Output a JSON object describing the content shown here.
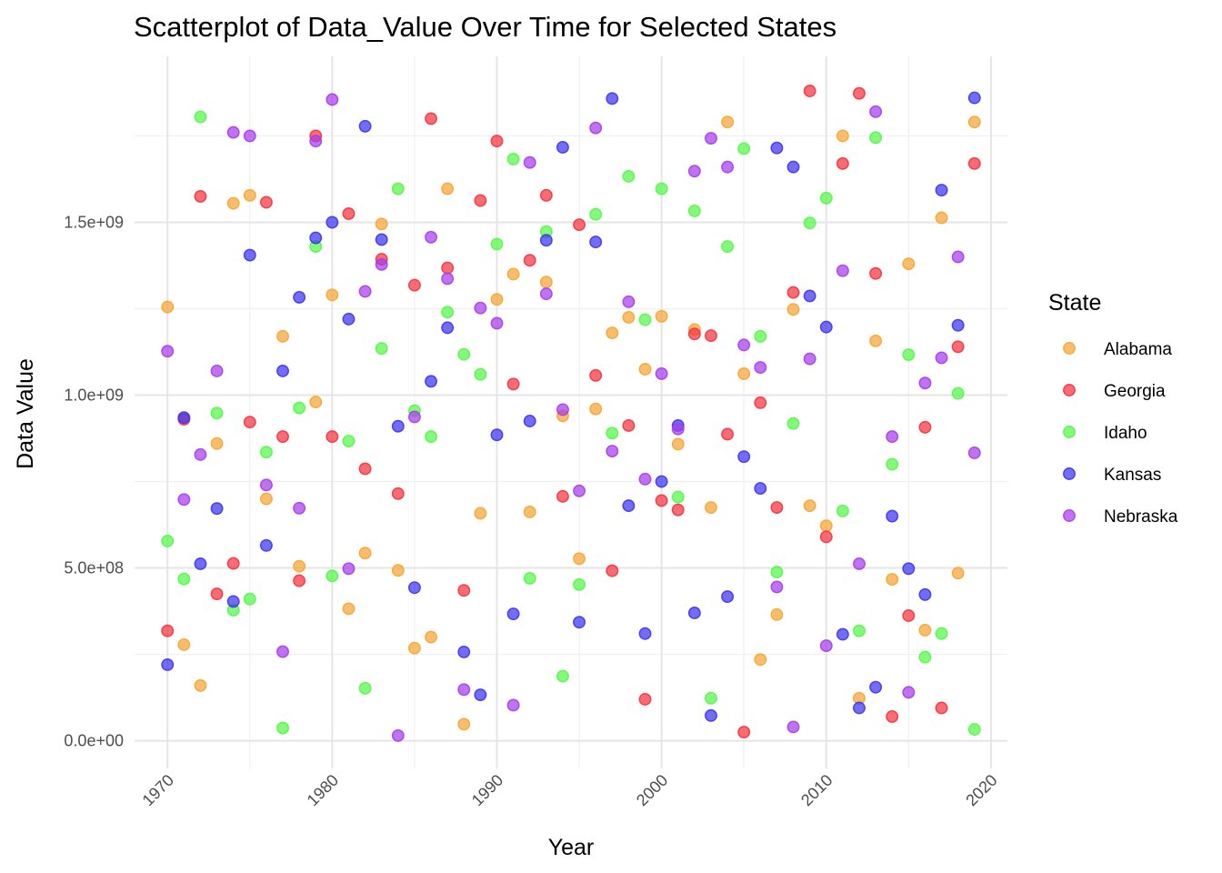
{
  "chart_data": {
    "type": "scatter",
    "title": "Scatterplot of Data_Value Over Time for Selected States",
    "xlabel": "Year",
    "ylabel": "Data Value",
    "xlim": [
      1968,
      2021
    ],
    "ylim": [
      -80000000,
      1980000000
    ],
    "x_ticks": [
      1970,
      1980,
      1990,
      2000,
      2010,
      2020
    ],
    "x_tick_labels": [
      "1970",
      "1980",
      "1990",
      "2000",
      "2010",
      "2020"
    ],
    "y_ticks": [
      0,
      500000000,
      1000000000,
      1500000000
    ],
    "y_tick_labels": [
      "0.0e+00",
      "5.0e+08",
      "1.0e+09",
      "1.5e+09"
    ],
    "grid": true,
    "legend": {
      "title": "State",
      "position": "right"
    },
    "series": [
      {
        "name": "Alabama",
        "color": "#F7A534",
        "points": [
          [
            1970,
            1255000000
          ],
          [
            1971,
            278000000
          ],
          [
            1972,
            160000000
          ],
          [
            1973,
            860000000
          ],
          [
            1974,
            1555000000
          ],
          [
            1975,
            1578000000
          ],
          [
            1976,
            700000000
          ],
          [
            1977,
            1170000000
          ],
          [
            1978,
            505000000
          ],
          [
            1979,
            980000000
          ],
          [
            1980,
            1290000000
          ],
          [
            1981,
            382000000
          ],
          [
            1982,
            543000000
          ],
          [
            1983,
            1495000000
          ],
          [
            1984,
            493000000
          ],
          [
            1985,
            268000000
          ],
          [
            1986,
            300000000
          ],
          [
            1987,
            1597000000
          ],
          [
            1988,
            48000000
          ],
          [
            1989,
            658000000
          ],
          [
            1990,
            1277000000
          ],
          [
            1991,
            1350000000
          ],
          [
            1992,
            662000000
          ],
          [
            1993,
            1327000000
          ],
          [
            1994,
            940000000
          ],
          [
            1995,
            527000000
          ],
          [
            1996,
            960000000
          ],
          [
            1997,
            1180000000
          ],
          [
            1998,
            1225000000
          ],
          [
            1999,
            1075000000
          ],
          [
            2000,
            1228000000
          ],
          [
            2001,
            858000000
          ],
          [
            2002,
            1190000000
          ],
          [
            2003,
            675000000
          ],
          [
            2004,
            1790000000
          ],
          [
            2005,
            1062000000
          ],
          [
            2006,
            235000000
          ],
          [
            2007,
            365000000
          ],
          [
            2008,
            1248000000
          ],
          [
            2009,
            680000000
          ],
          [
            2010,
            622000000
          ],
          [
            2011,
            1750000000
          ],
          [
            2012,
            123000000
          ],
          [
            2013,
            1157000000
          ],
          [
            2014,
            467000000
          ],
          [
            2015,
            1380000000
          ],
          [
            2016,
            320000000
          ],
          [
            2017,
            1513000000
          ],
          [
            2018,
            485000000
          ],
          [
            2019,
            1790000000
          ]
        ]
      },
      {
        "name": "Georgia",
        "color": "#F5333F",
        "points": [
          [
            1970,
            318000000
          ],
          [
            1971,
            930000000
          ],
          [
            1972,
            1575000000
          ],
          [
            1973,
            425000000
          ],
          [
            1974,
            513000000
          ],
          [
            1975,
            922000000
          ],
          [
            1976,
            1558000000
          ],
          [
            1977,
            880000000
          ],
          [
            1978,
            463000000
          ],
          [
            1979,
            1750000000
          ],
          [
            1980,
            880000000
          ],
          [
            1981,
            1525000000
          ],
          [
            1982,
            787000000
          ],
          [
            1983,
            1393000000
          ],
          [
            1984,
            715000000
          ],
          [
            1985,
            1318000000
          ],
          [
            1986,
            1800000000
          ],
          [
            1987,
            1368000000
          ],
          [
            1988,
            435000000
          ],
          [
            1989,
            1563000000
          ],
          [
            1990,
            1735000000
          ],
          [
            1991,
            1032000000
          ],
          [
            1992,
            1390000000
          ],
          [
            1993,
            1578000000
          ],
          [
            1994,
            707000000
          ],
          [
            1995,
            1493000000
          ],
          [
            1996,
            1057000000
          ],
          [
            1997,
            492000000
          ],
          [
            1998,
            912000000
          ],
          [
            1999,
            120000000
          ],
          [
            2000,
            695000000
          ],
          [
            2001,
            668000000
          ],
          [
            2002,
            1177000000
          ],
          [
            2003,
            1172000000
          ],
          [
            2004,
            887000000
          ],
          [
            2005,
            25000000
          ],
          [
            2006,
            978000000
          ],
          [
            2007,
            675000000
          ],
          [
            2008,
            1297000000
          ],
          [
            2009,
            1880000000
          ],
          [
            2010,
            590000000
          ],
          [
            2011,
            1670000000
          ],
          [
            2012,
            1873000000
          ],
          [
            2013,
            1352000000
          ],
          [
            2014,
            70000000
          ],
          [
            2015,
            362000000
          ],
          [
            2016,
            907000000
          ],
          [
            2017,
            95000000
          ],
          [
            2018,
            1140000000
          ],
          [
            2019,
            1670000000
          ]
        ]
      },
      {
        "name": "Idaho",
        "color": "#55F74A",
        "points": [
          [
            1970,
            578000000
          ],
          [
            1971,
            468000000
          ],
          [
            1972,
            1805000000
          ],
          [
            1973,
            948000000
          ],
          [
            1974,
            378000000
          ],
          [
            1975,
            410000000
          ],
          [
            1976,
            835000000
          ],
          [
            1977,
            37000000
          ],
          [
            1978,
            963000000
          ],
          [
            1979,
            1430000000
          ],
          [
            1980,
            477000000
          ],
          [
            1981,
            867000000
          ],
          [
            1982,
            152000000
          ],
          [
            1983,
            1135000000
          ],
          [
            1984,
            1597000000
          ],
          [
            1985,
            955000000
          ],
          [
            1986,
            880000000
          ],
          [
            1987,
            1240000000
          ],
          [
            1988,
            1118000000
          ],
          [
            1989,
            1060000000
          ],
          [
            1990,
            1437000000
          ],
          [
            1991,
            1683000000
          ],
          [
            1992,
            470000000
          ],
          [
            1993,
            1473000000
          ],
          [
            1994,
            187000000
          ],
          [
            1995,
            452000000
          ],
          [
            1996,
            1523000000
          ],
          [
            1997,
            890000000
          ],
          [
            1998,
            1633000000
          ],
          [
            1999,
            1218000000
          ],
          [
            2000,
            1597000000
          ],
          [
            2001,
            705000000
          ],
          [
            2002,
            1533000000
          ],
          [
            2003,
            123000000
          ],
          [
            2004,
            1430000000
          ],
          [
            2005,
            1713000000
          ],
          [
            2006,
            1170000000
          ],
          [
            2007,
            488000000
          ],
          [
            2008,
            918000000
          ],
          [
            2009,
            1498000000
          ],
          [
            2010,
            1570000000
          ],
          [
            2011,
            665000000
          ],
          [
            2012,
            318000000
          ],
          [
            2013,
            1745000000
          ],
          [
            2014,
            800000000
          ],
          [
            2015,
            1117000000
          ],
          [
            2016,
            242000000
          ],
          [
            2017,
            310000000
          ],
          [
            2018,
            1005000000
          ],
          [
            2019,
            33000000
          ]
        ]
      },
      {
        "name": "Kansas",
        "color": "#3C35F0",
        "points": [
          [
            1970,
            220000000
          ],
          [
            1971,
            935000000
          ],
          [
            1972,
            512000000
          ],
          [
            1973,
            672000000
          ],
          [
            1974,
            403000000
          ],
          [
            1975,
            1405000000
          ],
          [
            1976,
            565000000
          ],
          [
            1977,
            1070000000
          ],
          [
            1978,
            1283000000
          ],
          [
            1979,
            1455000000
          ],
          [
            1980,
            1500000000
          ],
          [
            1981,
            1220000000
          ],
          [
            1982,
            1778000000
          ],
          [
            1983,
            1450000000
          ],
          [
            1984,
            910000000
          ],
          [
            1985,
            443000000
          ],
          [
            1986,
            1040000000
          ],
          [
            1987,
            1195000000
          ],
          [
            1988,
            257000000
          ],
          [
            1989,
            133000000
          ],
          [
            1990,
            885000000
          ],
          [
            1991,
            367000000
          ],
          [
            1992,
            925000000
          ],
          [
            1993,
            1448000000
          ],
          [
            1994,
            1717000000
          ],
          [
            1995,
            343000000
          ],
          [
            1996,
            1443000000
          ],
          [
            1997,
            1858000000
          ],
          [
            1998,
            680000000
          ],
          [
            1999,
            310000000
          ],
          [
            2000,
            750000000
          ],
          [
            2001,
            912000000
          ],
          [
            2002,
            370000000
          ],
          [
            2003,
            73000000
          ],
          [
            2004,
            417000000
          ],
          [
            2005,
            822000000
          ],
          [
            2006,
            730000000
          ],
          [
            2007,
            1715000000
          ],
          [
            2008,
            1660000000
          ],
          [
            2009,
            1287000000
          ],
          [
            2010,
            1197000000
          ],
          [
            2011,
            308000000
          ],
          [
            2012,
            95000000
          ],
          [
            2013,
            155000000
          ],
          [
            2014,
            650000000
          ],
          [
            2015,
            498000000
          ],
          [
            2016,
            423000000
          ],
          [
            2017,
            1593000000
          ],
          [
            2018,
            1202000000
          ],
          [
            2019,
            1860000000
          ]
        ]
      },
      {
        "name": "Nebraska",
        "color": "#A73DEB",
        "points": [
          [
            1970,
            1127000000
          ],
          [
            1971,
            698000000
          ],
          [
            1972,
            828000000
          ],
          [
            1973,
            1070000000
          ],
          [
            1974,
            1760000000
          ],
          [
            1975,
            1750000000
          ],
          [
            1976,
            740000000
          ],
          [
            1977,
            258000000
          ],
          [
            1978,
            673000000
          ],
          [
            1979,
            1735000000
          ],
          [
            1980,
            1855000000
          ],
          [
            1981,
            498000000
          ],
          [
            1982,
            1300000000
          ],
          [
            1983,
            1378000000
          ],
          [
            1984,
            15000000
          ],
          [
            1985,
            937000000
          ],
          [
            1986,
            1457000000
          ],
          [
            1987,
            1337000000
          ],
          [
            1988,
            148000000
          ],
          [
            1989,
            1252000000
          ],
          [
            1990,
            1208000000
          ],
          [
            1991,
            103000000
          ],
          [
            1992,
            1673000000
          ],
          [
            1993,
            1293000000
          ],
          [
            1994,
            958000000
          ],
          [
            1995,
            723000000
          ],
          [
            1996,
            1773000000
          ],
          [
            1997,
            838000000
          ],
          [
            1998,
            1270000000
          ],
          [
            1999,
            757000000
          ],
          [
            2000,
            1062000000
          ],
          [
            2001,
            902000000
          ],
          [
            2002,
            1648000000
          ],
          [
            2003,
            1743000000
          ],
          [
            2004,
            1660000000
          ],
          [
            2005,
            1145000000
          ],
          [
            2006,
            1080000000
          ],
          [
            2007,
            445000000
          ],
          [
            2008,
            40000000
          ],
          [
            2009,
            1105000000
          ],
          [
            2010,
            275000000
          ],
          [
            2011,
            1360000000
          ],
          [
            2012,
            512000000
          ],
          [
            2013,
            1820000000
          ],
          [
            2014,
            880000000
          ],
          [
            2015,
            140000000
          ],
          [
            2016,
            1035000000
          ],
          [
            2017,
            1108000000
          ],
          [
            2018,
            1400000000
          ],
          [
            2019,
            833000000
          ]
        ]
      }
    ]
  }
}
